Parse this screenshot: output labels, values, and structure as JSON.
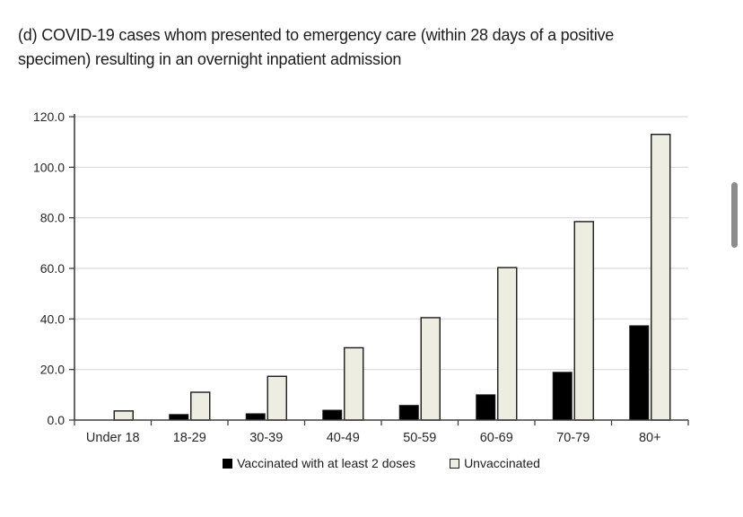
{
  "header": {
    "title_lines": [
      "(d) COVID-19 cases whom presented to emergency care (within 28 days of a positive",
      "specimen) resulting in an overnight inpatient admission"
    ]
  },
  "chart_data": {
    "type": "bar",
    "title": "(d) COVID-19 cases whom presented to emergency care (within 28 days of a positive specimen) resulting in an overnight inpatient admission",
    "categories": [
      "Under 18",
      "18-29",
      "30-39",
      "40-49",
      "50-59",
      "60-69",
      "70-79",
      "80+"
    ],
    "series": [
      {
        "name": "Vaccinated with at least 2 doses",
        "color": "#000000",
        "values": [
          0,
          2.2,
          2.5,
          3.9,
          5.8,
          10.0,
          18.9,
          37.3
        ]
      },
      {
        "name": "Unvaccinated",
        "color": "#eeede2",
        "values": [
          3.6,
          11.0,
          17.3,
          28.6,
          40.5,
          60.3,
          78.5,
          113.0
        ]
      }
    ],
    "xlabel": "",
    "ylabel": "",
    "ylim": [
      0,
      120
    ],
    "ytick_step": 20,
    "ytick_labels": [
      "0.0",
      "20.0",
      "40.0",
      "60.0",
      "80.0",
      "100.0",
      "120.0"
    ],
    "grid": true,
    "legend_position": "bottom",
    "colors": {
      "gridline": "#d9d9d9",
      "axis": "#404040",
      "tick_text": "#262626",
      "bar_border": "#1a1a1a"
    }
  }
}
